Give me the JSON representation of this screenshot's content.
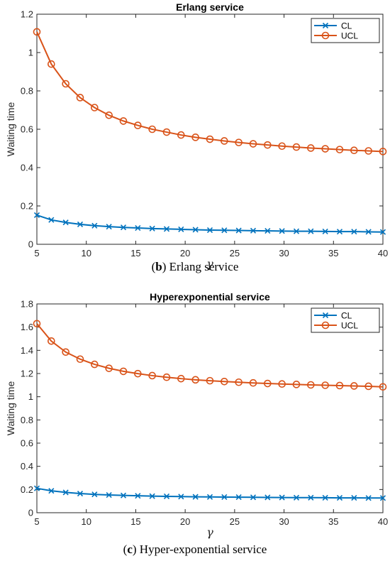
{
  "chart_data": [
    {
      "type": "line",
      "title": "Erlang service",
      "xlabel": "γ",
      "ylabel": "Waiting time",
      "xlim": [
        5,
        40
      ],
      "ylim": [
        0,
        1.2
      ],
      "xticks": [
        "5",
        "10",
        "15",
        "20",
        "25",
        "30",
        "35",
        "40"
      ],
      "yticks": [
        "0",
        "0.2",
        "0.4",
        "0.6",
        "0.8",
        "1",
        "1.2"
      ],
      "legend_position": "top-right",
      "x": [
        5,
        6.458,
        7.917,
        9.375,
        10.833,
        12.292,
        13.75,
        15.208,
        16.667,
        18.125,
        19.583,
        21.042,
        22.5,
        23.958,
        25.417,
        26.875,
        28.333,
        29.792,
        31.25,
        32.708,
        34.167,
        35.625,
        37.083,
        38.542,
        40
      ],
      "series": [
        {
          "name": "CL",
          "color": "#0072BD",
          "marker": "x",
          "values": [
            0.152,
            0.127,
            0.114,
            0.104,
            0.097,
            0.092,
            0.088,
            0.085,
            0.082,
            0.08,
            0.078,
            0.076,
            0.074,
            0.073,
            0.072,
            0.071,
            0.07,
            0.069,
            0.068,
            0.068,
            0.067,
            0.066,
            0.066,
            0.065,
            0.064
          ]
        },
        {
          "name": "UCL",
          "color": "#D95319",
          "marker": "o",
          "values": [
            1.108,
            0.94,
            0.837,
            0.765,
            0.713,
            0.673,
            0.643,
            0.62,
            0.6,
            0.585,
            0.57,
            0.558,
            0.548,
            0.539,
            0.531,
            0.524,
            0.518,
            0.512,
            0.507,
            0.502,
            0.498,
            0.494,
            0.49,
            0.487,
            0.484
          ]
        }
      ],
      "caption_prefix": "(",
      "caption_bold": "b",
      "caption_suffix": ") Erlang service"
    },
    {
      "type": "line",
      "title": "Hyperexponential service",
      "xlabel": "γ",
      "ylabel": "Waiting time",
      "xlim": [
        5,
        40
      ],
      "ylim": [
        0,
        1.8
      ],
      "xticks": [
        "5",
        "10",
        "15",
        "20",
        "25",
        "30",
        "35",
        "40"
      ],
      "yticks": [
        "0",
        "0.2",
        "0.4",
        "0.6",
        "0.8",
        "1",
        "1.2",
        "1.4",
        "1.6",
        "1.8"
      ],
      "legend_position": "top-right",
      "x": [
        5,
        6.458,
        7.917,
        9.375,
        10.833,
        12.292,
        13.75,
        15.208,
        16.667,
        18.125,
        19.583,
        21.042,
        22.5,
        23.958,
        25.417,
        26.875,
        28.333,
        29.792,
        31.25,
        32.708,
        34.167,
        35.625,
        37.083,
        38.542,
        40
      ],
      "series": [
        {
          "name": "CL",
          "color": "#0072BD",
          "marker": "x",
          "values": [
            0.21,
            0.189,
            0.175,
            0.165,
            0.158,
            0.153,
            0.149,
            0.146,
            0.143,
            0.141,
            0.139,
            0.137,
            0.136,
            0.135,
            0.134,
            0.133,
            0.132,
            0.131,
            0.13,
            0.13,
            0.129,
            0.128,
            0.128,
            0.127,
            0.127
          ]
        },
        {
          "name": "UCL",
          "color": "#D95319",
          "marker": "o",
          "values": [
            1.63,
            1.48,
            1.385,
            1.324,
            1.279,
            1.245,
            1.219,
            1.199,
            1.182,
            1.168,
            1.156,
            1.146,
            1.138,
            1.131,
            1.125,
            1.119,
            1.114,
            1.11,
            1.106,
            1.102,
            1.099,
            1.096,
            1.093,
            1.09,
            1.085
          ]
        }
      ],
      "caption_prefix": "(",
      "caption_bold": "c",
      "caption_suffix": ") Hyper-exponential service"
    }
  ]
}
